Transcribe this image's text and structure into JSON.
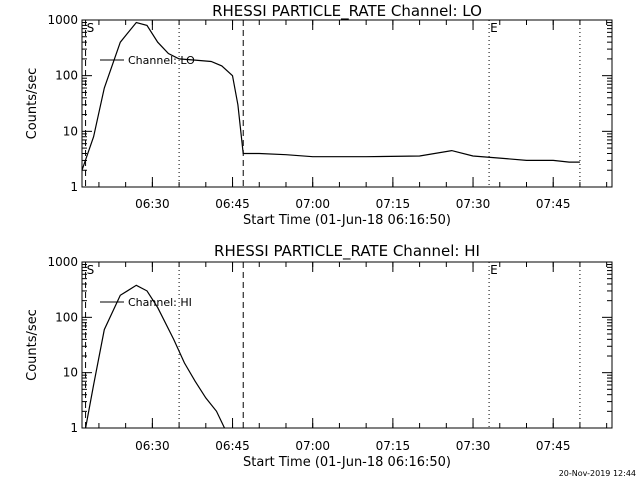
{
  "chart_data": [
    {
      "type": "line",
      "title": "RHESSI PARTICLE_RATE Channel: LO",
      "xlabel": "Start Time (01-Jun-18 06:16:50)",
      "ylabel": "Counts/sec",
      "yscale": "log",
      "ylim": [
        1,
        1000
      ],
      "xlim": [
        "06:16:50",
        "07:56:00"
      ],
      "xticks": [
        "06:30",
        "06:45",
        "07:00",
        "07:15",
        "07:30",
        "07:45"
      ],
      "yticks": [
        "1",
        "10",
        "100",
        "1000"
      ],
      "legend": "Channel: LO",
      "legend_position": "top-left",
      "markers": [
        {
          "label": "S",
          "time": "06:17:30",
          "style": "dashed"
        },
        {
          "label": "",
          "time": "06:35:00",
          "style": "dotted"
        },
        {
          "label": "",
          "time": "06:47:00",
          "style": "dashed"
        },
        {
          "label": "E",
          "time": "07:33:00",
          "style": "dotted"
        },
        {
          "label": "",
          "time": "07:50:00",
          "style": "dotted"
        }
      ],
      "series": [
        {
          "name": "Channel: LO",
          "x": [
            "06:16:50",
            "06:19:00",
            "06:21:00",
            "06:24:00",
            "06:27:00",
            "06:29:00",
            "06:31:00",
            "06:33:00",
            "06:35:00",
            "06:38:00",
            "06:41:00",
            "06:43:00",
            "06:45:00",
            "06:46:00",
            "06:47:00",
            "06:50:00",
            "06:55:00",
            "07:00:00",
            "07:10:00",
            "07:20:00",
            "07:26:00",
            "07:30:00",
            "07:35:00",
            "07:40:00",
            "07:45:00",
            "07:48:00",
            "07:50:00"
          ],
          "y": [
            2,
            8,
            60,
            400,
            900,
            800,
            400,
            250,
            200,
            190,
            180,
            150,
            100,
            30,
            4,
            4,
            3.8,
            3.5,
            3.5,
            3.6,
            4.5,
            3.6,
            3.3,
            3.0,
            3.0,
            2.8,
            2.8
          ]
        }
      ]
    },
    {
      "type": "line",
      "title": "RHESSI PARTICLE_RATE Channel: HI",
      "xlabel": "Start Time (01-Jun-18 06:16:50)",
      "ylabel": "Counts/sec",
      "yscale": "log",
      "ylim": [
        1,
        1000
      ],
      "xlim": [
        "06:16:50",
        "07:56:00"
      ],
      "xticks": [
        "06:30",
        "06:45",
        "07:00",
        "07:15",
        "07:30",
        "07:45"
      ],
      "yticks": [
        "1",
        "10",
        "100",
        "1000"
      ],
      "legend": "Channel: HI",
      "legend_position": "top-left",
      "markers": [
        {
          "label": "S",
          "time": "06:17:30",
          "style": "dashed"
        },
        {
          "label": "",
          "time": "06:35:00",
          "style": "dotted"
        },
        {
          "label": "",
          "time": "06:47:00",
          "style": "dashed"
        },
        {
          "label": "E",
          "time": "07:33:00",
          "style": "dotted"
        },
        {
          "label": "",
          "time": "07:50:00",
          "style": "dotted"
        }
      ],
      "series": [
        {
          "name": "Channel: HI",
          "x": [
            "06:17:30",
            "06:19:00",
            "06:21:00",
            "06:24:00",
            "06:27:00",
            "06:29:00",
            "06:31:00",
            "06:34:00",
            "06:36:00",
            "06:38:00",
            "06:40:00",
            "06:42:00",
            "06:43:30"
          ],
          "y": [
            1,
            6,
            60,
            250,
            380,
            300,
            150,
            40,
            15,
            7,
            3.5,
            2,
            1
          ]
        }
      ]
    }
  ],
  "footer": {
    "stamp": "20-Nov-2019 12:44"
  },
  "colors": {
    "background": "#ffffff",
    "line": "#000000"
  }
}
